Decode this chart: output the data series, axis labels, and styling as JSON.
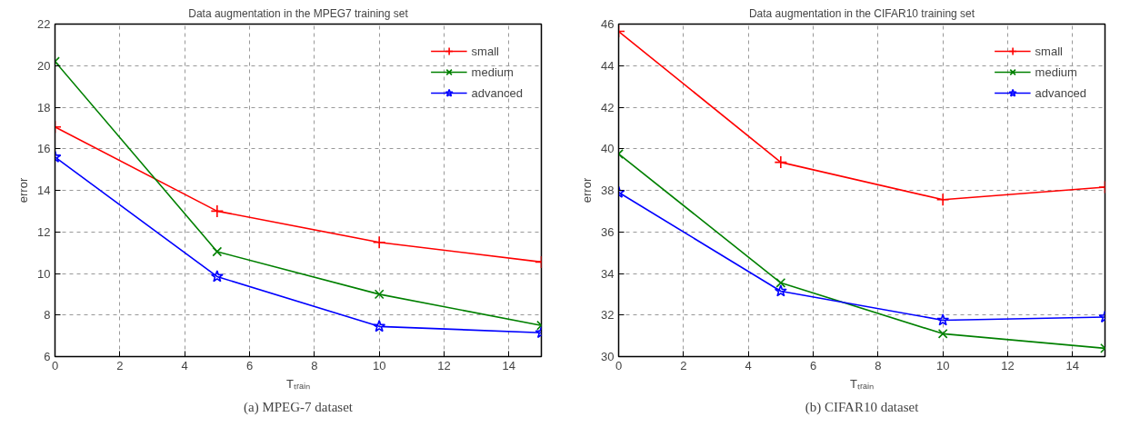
{
  "chart_data": [
    {
      "type": "line",
      "title": "Data augmentation in the MPEG7 training set",
      "xlabel": "Tₜᵣₐᵢₙ",
      "ylabel": "error",
      "annotations": [
        "(a) MPEG-7 dataset"
      ],
      "x": [
        0,
        5,
        10,
        15
      ],
      "series": [
        {
          "name": "small",
          "color": "#ff0000",
          "marker": "cross",
          "values": [
            17.05,
            13.0,
            11.5,
            10.55
          ]
        },
        {
          "name": "medium",
          "color": "#008000",
          "marker": "x",
          "values": [
            20.2,
            11.05,
            9.0,
            7.5
          ]
        },
        {
          "name": "advanced",
          "color": "#0000ff",
          "marker": "star",
          "values": [
            15.6,
            9.85,
            7.45,
            7.15
          ]
        }
      ],
      "xlim": [
        0,
        15
      ],
      "ylim": [
        6,
        22
      ],
      "xticks": [
        0,
        2,
        4,
        6,
        8,
        10,
        12,
        14
      ],
      "yticks": [
        6,
        8,
        10,
        12,
        14,
        16,
        18,
        20,
        22
      ],
      "grid": true,
      "legend": "top right",
      "line_style": "solid"
    },
    {
      "type": "line",
      "title": "Data augmentation in the CIFAR10 training set",
      "xlabel": "Tₜᵣₐᵢₙ",
      "ylabel": "error",
      "annotations": [
        "(b) CIFAR10 dataset"
      ],
      "x": [
        0,
        5,
        10,
        15
      ],
      "series": [
        {
          "name": "small",
          "color": "#ff0000",
          "marker": "cross",
          "values": [
            45.65,
            39.35,
            37.55,
            38.15
          ]
        },
        {
          "name": "medium",
          "color": "#008000",
          "marker": "x",
          "values": [
            39.75,
            33.55,
            31.1,
            30.4
          ]
        },
        {
          "name": "advanced",
          "color": "#0000ff",
          "marker": "star",
          "values": [
            37.9,
            33.15,
            31.75,
            31.9
          ]
        }
      ],
      "xlim": [
        0,
        15
      ],
      "ylim": [
        30,
        46
      ],
      "xticks": [
        0,
        2,
        4,
        6,
        8,
        10,
        12,
        14
      ],
      "yticks": [
        30,
        32,
        34,
        36,
        38,
        40,
        42,
        44,
        46
      ],
      "grid": true,
      "legend": "top right",
      "line_style": "solid"
    }
  ]
}
